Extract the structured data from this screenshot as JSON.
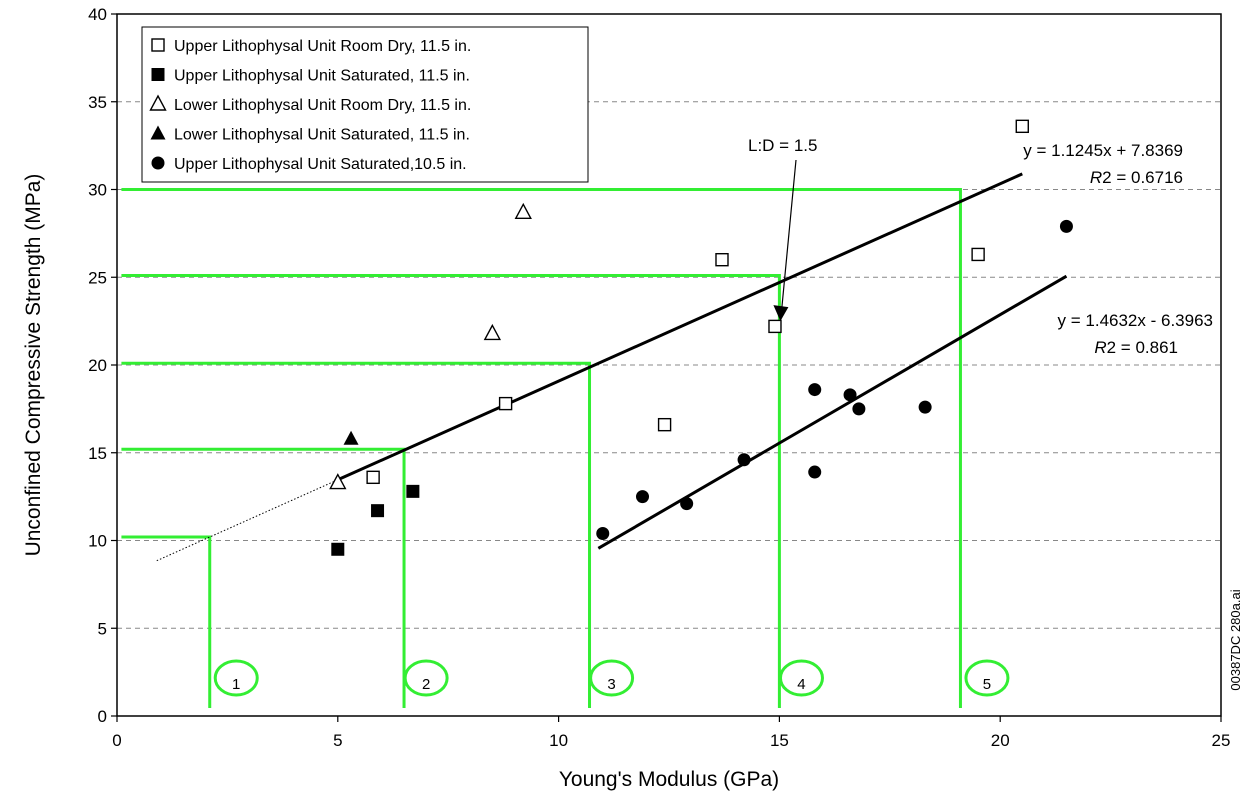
{
  "chart_data": {
    "type": "scatter",
    "title": "",
    "xlabel": "Young's Modulus (GPa)",
    "ylabel": "Unconfined Compressive Strength (MPa)",
    "xlim": [
      0,
      25
    ],
    "ylim": [
      0,
      40
    ],
    "xticks": [
      "0",
      "5",
      "10",
      "15",
      "20",
      "25"
    ],
    "yticks": [
      "0",
      "5",
      "10",
      "15",
      "20",
      "25",
      "30",
      "35",
      "40"
    ],
    "grid": "horizontal dashed",
    "legend_position": "top-left",
    "series": [
      {
        "name": "Upper Lithophysal Unit Room Dry, 11.5 in.",
        "marker": "open-square",
        "points": [
          [
            5.8,
            13.6
          ],
          [
            8.8,
            17.8
          ],
          [
            12.4,
            16.6
          ],
          [
            13.7,
            26.0
          ],
          [
            14.9,
            22.2
          ],
          [
            19.5,
            26.3
          ],
          [
            20.5,
            33.6
          ]
        ]
      },
      {
        "name": "Upper Lithophysal Unit Saturated, 11.5 in.",
        "marker": "filled-square",
        "points": [
          [
            5.0,
            9.5
          ],
          [
            5.9,
            11.7
          ],
          [
            6.7,
            12.8
          ]
        ]
      },
      {
        "name": "Lower Lithophysal Unit Room Dry, 11.5 in.",
        "marker": "open-triangle",
        "points": [
          [
            5.0,
            13.3
          ],
          [
            8.5,
            21.8
          ],
          [
            9.2,
            28.7
          ]
        ]
      },
      {
        "name": "Lower Lithophysal Unit Saturated, 11.5 in.",
        "marker": "filled-triangle",
        "points": [
          [
            5.3,
            15.8
          ]
        ]
      },
      {
        "name": "Upper Lithophysal Unit Saturated,10.5 in.",
        "marker": "filled-circle",
        "points": [
          [
            11.0,
            10.4
          ],
          [
            11.9,
            12.5
          ],
          [
            12.9,
            12.1
          ],
          [
            14.2,
            14.6
          ],
          [
            15.8,
            13.9
          ],
          [
            15.8,
            18.6
          ],
          [
            16.6,
            18.3
          ],
          [
            16.8,
            17.5
          ],
          [
            18.3,
            17.6
          ],
          [
            21.5,
            27.9
          ]
        ]
      }
    ],
    "trendlines": [
      {
        "equation": "y = 1.1245x + 7.8369",
        "r2_label": "R",
        "r2_value": "2 = 0.6716",
        "slope": 1.1245,
        "intercept": 7.8369,
        "solid_x": [
          5.0,
          20.5
        ],
        "dotted_x": [
          0.9,
          5.0
        ]
      },
      {
        "equation": "y = 1.4632x - 6.3963",
        "r2_label": "R",
        "r2_value": "2 = 0.861",
        "slope": 1.4632,
        "intercept": -6.3963,
        "solid_x": [
          10.9,
          21.5
        ]
      }
    ],
    "category_boundaries": [
      {
        "y": 10.2,
        "x_start": 0.1,
        "x_break": 2.1
      },
      {
        "y": 15.2,
        "x_start": 0.1,
        "x_break": 6.5
      },
      {
        "y": 20.1,
        "x_start": 0.1,
        "x_break": 10.7
      },
      {
        "y": 25.1,
        "x_start": 0.1,
        "x_break": 15.0
      },
      {
        "y": 30.0,
        "x_start": 0.1,
        "x_break": 19.1
      }
    ],
    "categories": [
      {
        "label": "1",
        "x": 2.7
      },
      {
        "label": "2",
        "x": 7.0
      },
      {
        "label": "3",
        "x": 11.2
      },
      {
        "label": "4",
        "x": 15.5
      },
      {
        "label": "5",
        "x": 19.7
      }
    ],
    "annotation": {
      "text": "L:D = 1.5",
      "tip": [
        15.0,
        22.5
      ]
    },
    "side_label": "00387DC  280a.ai",
    "colors": {
      "category_lines": "#33ee33",
      "grid": "#888888",
      "ink": "#000000"
    }
  }
}
